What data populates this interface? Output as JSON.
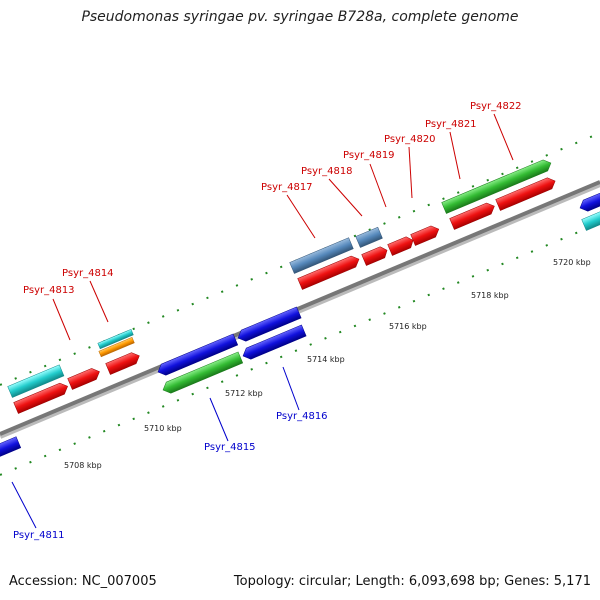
{
  "title": "Pseudomonas syringae pv. syringae B728a, complete genome",
  "footer": {
    "accession": "Accession: NC_007005",
    "summary": "Topology: circular; Length: 6,093,698 bp; Genes: 5,171"
  },
  "colors": {
    "forward_label": "#cc0000",
    "reverse_label": "#0000cc",
    "red": "#ee1111",
    "blue": "#1111dd",
    "green": "#33bb33",
    "cyan": "#22cccc",
    "steel": "#5588bb",
    "orange": "#ff9900",
    "tick": "#228822"
  },
  "gene_labels": [
    {
      "id": "Psyr_4811",
      "strand": "reverse"
    },
    {
      "id": "Psyr_4813",
      "strand": "forward"
    },
    {
      "id": "Psyr_4814",
      "strand": "forward"
    },
    {
      "id": "Psyr_4815",
      "strand": "reverse"
    },
    {
      "id": "Psyr_4816",
      "strand": "reverse"
    },
    {
      "id": "Psyr_4817",
      "strand": "forward"
    },
    {
      "id": "Psyr_4818",
      "strand": "forward"
    },
    {
      "id": "Psyr_4819",
      "strand": "forward"
    },
    {
      "id": "Psyr_4820",
      "strand": "forward"
    },
    {
      "id": "Psyr_4821",
      "strand": "forward"
    },
    {
      "id": "Psyr_4822",
      "strand": "forward"
    }
  ],
  "kbp_ticks": [
    "5708 kbp",
    "5710 kbp",
    "5712 kbp",
    "5714 kbp",
    "5716 kbp",
    "5718 kbp",
    "5720 kbp"
  ]
}
